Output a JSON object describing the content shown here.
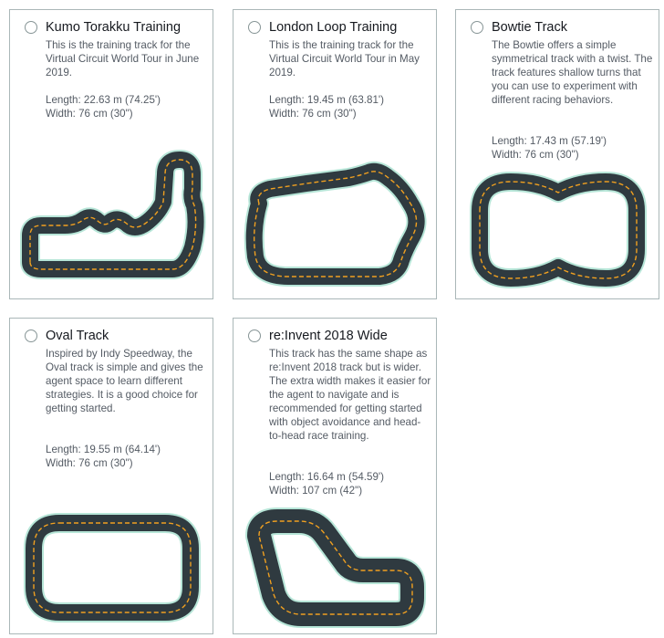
{
  "tracks": [
    {
      "title": "Kumo Torakku Training",
      "description": "This is the training track for the Virtual Circuit World Tour in June 2019.",
      "length": "Length: 22.63 m (74.25')",
      "width": "Width: 76 cm (30\")",
      "icon": "kumo-torakku-track-icon"
    },
    {
      "title": "London Loop Training",
      "description": "This is the training track for the Virtual Circuit World Tour in May 2019.",
      "length": "Length: 19.45 m (63.81')",
      "width": "Width: 76 cm (30\")",
      "icon": "london-loop-track-icon"
    },
    {
      "title": "Bowtie Track",
      "description": "The Bowtie offers a simple symmetrical track with a twist. The track features shallow turns that you can use to experiment with different racing behaviors.",
      "length": "Length: 17.43 m (57.19')",
      "width": "Width: 76 cm (30\")",
      "icon": "bowtie-track-icon"
    },
    {
      "title": "Oval Track",
      "description": "Inspired by Indy Speedway, the Oval track is simple and gives the agent space to learn different strategies. It is a good choice for getting started.",
      "length": "Length: 19.55 m (64.14')",
      "width": "Width: 76 cm (30\")",
      "icon": "oval-track-icon"
    },
    {
      "title": "re:Invent 2018 Wide",
      "description": "This track has the same shape as re:Invent 2018 track but is wider. The extra width makes it easier for the agent to navigate and is recommended for getting started with object avoidance and head-to-head race training.",
      "length": "Length: 16.64 m (54.59')",
      "width": "Width: 107 cm (42\")",
      "icon": "reinvent-2018-wide-track-icon"
    }
  ],
  "colors": {
    "asphalt": "#2f3a40",
    "center_line": "#f0a020",
    "track_edge": "#b7e6d8",
    "card_border": "#aab7b8"
  }
}
